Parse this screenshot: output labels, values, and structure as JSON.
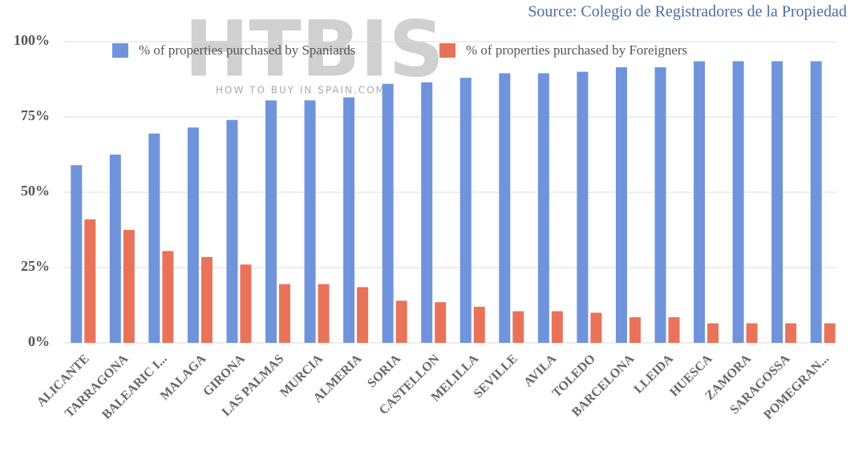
{
  "chart_data": {
    "type": "bar",
    "source": "Source: Colegio de Registradores de la Propiedad",
    "watermark": "HTBIS",
    "watermark_subtitle": "HOW TO BUY IN SPAIN.COM",
    "categories": [
      "ALICANTE",
      "TARRAGONA",
      "BALEARIC I...",
      "MALAGA",
      "GIRONA",
      "LAS PALMAS",
      "MURCIA",
      "ALMERIA",
      "SORIA",
      "CASTELLON",
      "MELILLA",
      "SEVILLE",
      "AVILA",
      "TOLEDO",
      "BARCELONA",
      "LLEIDA",
      "HUESCA",
      "ZAMORA",
      "SARAGOSSA",
      "POMEGRAN..."
    ],
    "series": [
      {
        "name": "% of properties purchased by Spaniards",
        "color": "#6f94dc",
        "values": [
          59,
          62.5,
          69.5,
          71.5,
          74,
          80.5,
          80.5,
          81.5,
          86,
          86.5,
          88,
          89.5,
          89.5,
          90,
          91.5,
          91.5,
          93.5,
          93.5,
          93.5,
          93.5
        ]
      },
      {
        "name": "% of properties purchased by Foreigners",
        "color": "#e8735a",
        "values": [
          41,
          37.5,
          30.5,
          28.5,
          26,
          19.5,
          19.5,
          18.5,
          14,
          13.5,
          12,
          10.5,
          10.5,
          10,
          8.5,
          8.5,
          6.5,
          6.5,
          6.5,
          6.5
        ]
      }
    ],
    "ylim": [
      0,
      100
    ],
    "yticks": [
      {
        "value": 0,
        "label": "0%"
      },
      {
        "value": 25,
        "label": "25%"
      },
      {
        "value": 50,
        "label": "50%"
      },
      {
        "value": 75,
        "label": "75%"
      },
      {
        "value": 100,
        "label": "100%"
      }
    ],
    "grid": true,
    "legend": "top"
  }
}
